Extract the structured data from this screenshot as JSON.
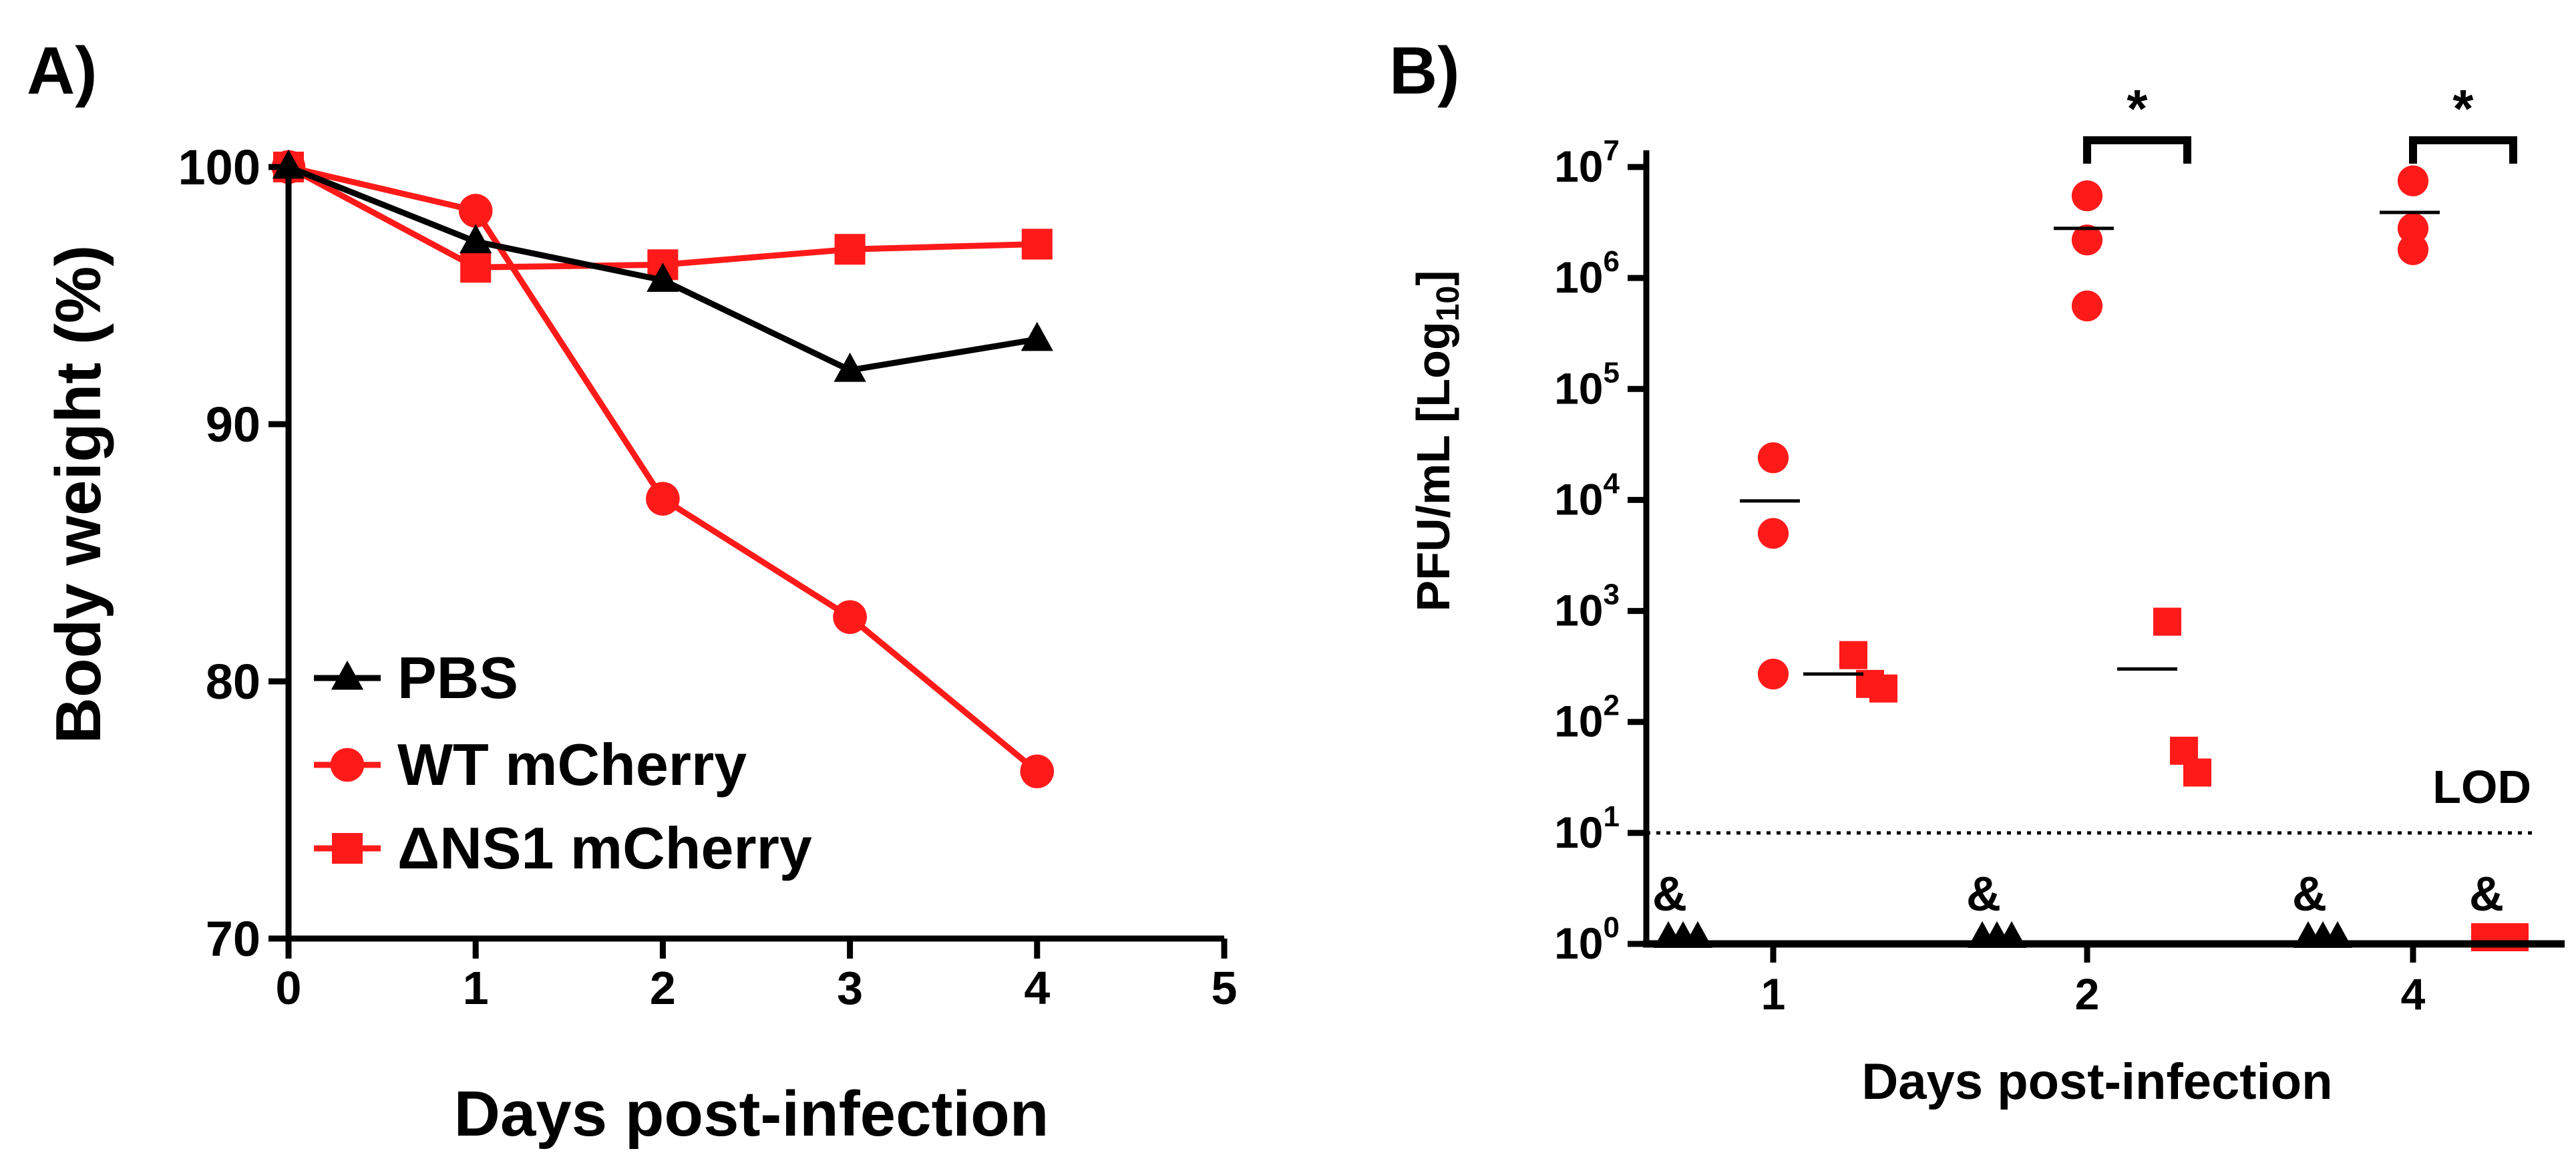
{
  "colors": {
    "pbs": "#000000",
    "wt": "#ff1a1a",
    "dns1": "#ff1a1a",
    "axis": "#000000"
  },
  "panel_a": {
    "panel_label": "A)"
  },
  "panel_b": {
    "panel_label": "B)",
    "lod_label": "LOD",
    "sig_symbol": "*",
    "below_lod_symbol": "&",
    "ylabel_main": "PFU/mL [Log",
    "ylabel_sub": "10",
    "ylabel_close": "]"
  },
  "chart_data": [
    {
      "type": "line",
      "title": "",
      "xlabel": "Days post-infection",
      "ylabel": "Body weight (%)",
      "xlim": [
        0,
        5
      ],
      "ylim": [
        70,
        100
      ],
      "x_ticks": [
        0,
        1,
        2,
        3,
        4,
        5
      ],
      "y_ticks": [
        70,
        80,
        90,
        100
      ],
      "legend_position": "bottom-left",
      "series": [
        {
          "name": "PBS",
          "marker": "triangle",
          "color": "#000000",
          "x": [
            0,
            1,
            2,
            3,
            4
          ],
          "y": [
            100,
            97.1,
            95.6,
            92.1,
            93.3
          ]
        },
        {
          "name": "WT mCherry",
          "marker": "circle",
          "color": "#ff1a1a",
          "x": [
            0,
            1,
            2,
            3,
            4
          ],
          "y": [
            100,
            98.3,
            87.1,
            82.5,
            76.5
          ]
        },
        {
          "name": "ΔNS1 mCherry",
          "marker": "square",
          "color": "#ff1a1a",
          "x": [
            0,
            1,
            2,
            3,
            4
          ],
          "y": [
            100,
            96.1,
            96.2,
            96.8,
            97.0
          ]
        }
      ]
    },
    {
      "type": "scatter",
      "title": "",
      "xlabel": "Days post-infection",
      "ylabel": "PFU/mL [Log10]",
      "y_scale": "log10",
      "ylim": [
        1,
        10000000
      ],
      "y_ticks": [
        {
          "base": "10",
          "exp": "0"
        },
        {
          "base": "10",
          "exp": "1"
        },
        {
          "base": "10",
          "exp": "2"
        },
        {
          "base": "10",
          "exp": "3"
        },
        {
          "base": "10",
          "exp": "4"
        },
        {
          "base": "10",
          "exp": "5"
        },
        {
          "base": "10",
          "exp": "6"
        },
        {
          "base": "10",
          "exp": "7"
        }
      ],
      "categories": [
        "1",
        "2",
        "4"
      ],
      "lod": 10,
      "groups": [
        {
          "day": "1",
          "series": "PBS",
          "marker": "triangle",
          "color": "#000000",
          "values": [
            1,
            1,
            1
          ],
          "mean": null,
          "below_lod": true
        },
        {
          "day": "1",
          "series": "WT mCherry",
          "marker": "circle",
          "color": "#ff1a1a",
          "values": [
            24000,
            5000,
            270
          ],
          "mean": 9800,
          "below_lod": false
        },
        {
          "day": "1",
          "series": "ΔNS1 mCherry",
          "marker": "square",
          "color": "#ff1a1a",
          "values": [
            400,
            220,
            200
          ],
          "mean": 270,
          "below_lod": false
        },
        {
          "day": "2",
          "series": "PBS",
          "marker": "triangle",
          "color": "#000000",
          "values": [
            1,
            1,
            1
          ],
          "mean": null,
          "below_lod": true
        },
        {
          "day": "2",
          "series": "WT mCherry",
          "marker": "circle",
          "color": "#ff1a1a",
          "values": [
            5500000,
            2200000,
            560000
          ],
          "mean": 2800000,
          "below_lod": false
        },
        {
          "day": "2",
          "series": "ΔNS1 mCherry",
          "marker": "square",
          "color": "#ff1a1a",
          "values": [
            800,
            55,
            35
          ],
          "mean": 300,
          "below_lod": false
        },
        {
          "day": "4",
          "series": "PBS",
          "marker": "triangle",
          "color": "#000000",
          "values": [
            1,
            1,
            1
          ],
          "mean": null,
          "below_lod": true
        },
        {
          "day": "4",
          "series": "WT mCherry",
          "marker": "circle",
          "color": "#ff1a1a",
          "values": [
            7500000,
            2800000,
            1800000
          ],
          "mean": 3900000,
          "below_lod": false
        },
        {
          "day": "4",
          "series": "ΔNS1 mCherry",
          "marker": "square",
          "color": "#ff1a1a",
          "values": [
            1,
            1,
            1
          ],
          "mean": null,
          "below_lod": true
        }
      ],
      "significance": [
        {
          "day": "2",
          "label": "*"
        },
        {
          "day": "4",
          "label": "*"
        }
      ]
    }
  ]
}
